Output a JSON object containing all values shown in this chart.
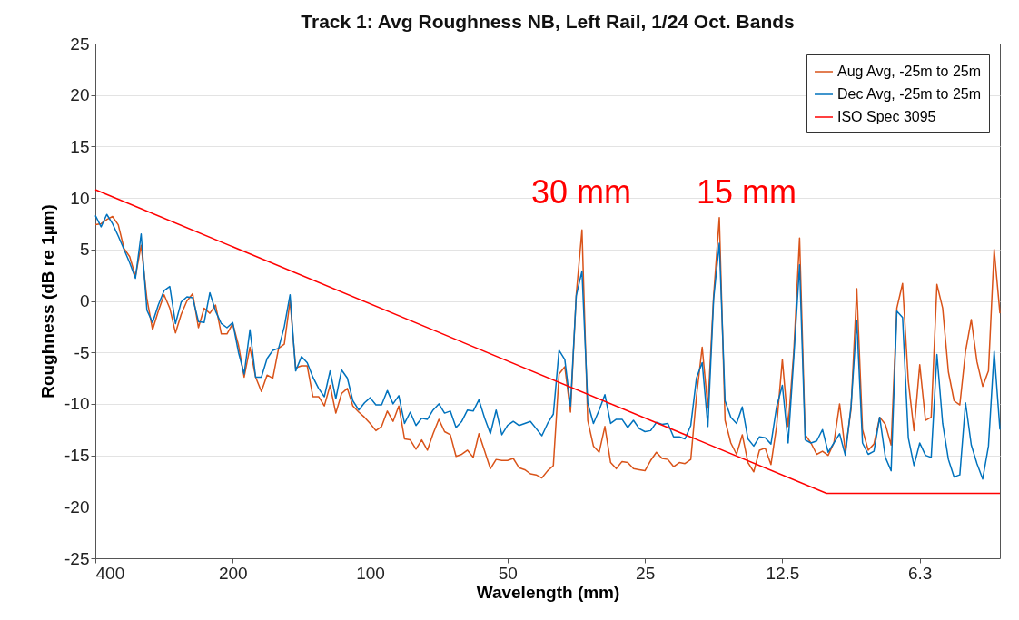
{
  "chart_data": {
    "type": "line",
    "title": "Track 1: Avg Roughness NB, Left Rail, 1/24 Oct. Bands",
    "xlabel": "Wavelength (mm)",
    "ylabel": "Roughness (dB re 1µm)",
    "x": [
      400,
      388.6,
      377.6,
      366.8,
      356.4,
      346.2,
      336.4,
      326.8,
      317.5,
      308.4,
      299.7,
      291.2,
      282.8,
      274.8,
      267.0,
      259.4,
      252.0,
      244.8,
      237.8,
      231.1,
      224.5,
      218.1,
      211.9,
      205.9,
      200,
      194.3,
      188.8,
      183.4,
      178.2,
      173.1,
      168.2,
      163.4,
      158.7,
      154.2,
      149.8,
      145.6,
      141.4,
      137.4,
      133.5,
      129.7,
      126.0,
      122.4,
      118.9,
      115.5,
      112.2,
      109.1,
      105.9,
      102.9,
      100,
      97.15,
      94.39,
      91.7,
      89.09,
      86.55,
      84.09,
      81.7,
      79.37,
      77.11,
      74.92,
      72.79,
      70.71,
      68.7,
      66.74,
      64.84,
      63.0,
      61.2,
      59.46,
      57.77,
      56.12,
      54.53,
      52.97,
      51.47,
      50,
      48.58,
      47.2,
      45.85,
      44.55,
      43.28,
      42.05,
      40.85,
      39.69,
      38.56,
      37.46,
      36.4,
      35.36,
      34.35,
      33.37,
      32.42,
      31.5,
      30.6,
      29.73,
      28.89,
      28.06,
      27.27,
      26.49,
      25.74,
      25,
      24.29,
      23.6,
      22.93,
      22.27,
      21.64,
      21.02,
      20.43,
      19.84,
      19.28,
      18.73,
      18.2,
      17.68,
      17.18,
      16.69,
      16.21,
      15.75,
      15.3,
      14.87,
      14.44,
      14.03,
      13.63,
      13.24,
      12.87,
      12.5,
      12.14,
      11.8,
      11.46,
      11.14,
      10.82,
      10.51,
      10.21,
      9.921,
      9.639,
      9.365,
      9.099,
      8.839,
      8.588,
      8.343,
      8.105,
      7.875,
      7.65,
      7.433,
      7.221,
      7.015,
      6.816,
      6.621,
      6.434,
      6.25,
      6.072,
      5.899,
      5.731,
      5.568,
      5.409,
      5.256,
      5.106,
      4.961,
      4.819,
      4.683,
      4.549,
      4.419,
      4.294,
      4.171
    ],
    "series": [
      {
        "name": "Aug Avg, -25m to 25m",
        "color": "#d95319",
        "values": [
          7.4,
          7.5,
          7.9,
          8.2,
          7.4,
          5.1,
          4.3,
          2.4,
          5.4,
          0.2,
          -2.8,
          -1.0,
          0.6,
          -0.7,
          -3.1,
          -1.3,
          0.0,
          0.7,
          -2.6,
          -0.7,
          -1.2,
          -0.4,
          -3.2,
          -3.2,
          -2.2,
          -4.3,
          -7.4,
          -4.5,
          -7.4,
          -8.8,
          -7.2,
          -7.5,
          -4.6,
          -4.2,
          0.0,
          -6.5,
          -6.3,
          -6.3,
          -9.3,
          -9.3,
          -10.2,
          -8.2,
          -10.9,
          -9.0,
          -8.5,
          -10.2,
          -10.8,
          -11.3,
          -11.9,
          -12.6,
          -12.2,
          -10.7,
          -11.7,
          -10.2,
          -13.4,
          -13.5,
          -14.4,
          -13.5,
          -14.5,
          -12.9,
          -11.5,
          -12.7,
          -13.0,
          -15.1,
          -14.9,
          -14.5,
          -15.2,
          -12.9,
          -14.6,
          -16.3,
          -15.4,
          -15.5,
          -15.5,
          -15.3,
          -16.2,
          -16.4,
          -16.8,
          -16.9,
          -17.2,
          -16.5,
          -16.0,
          -7.1,
          -6.4,
          -10.8,
          0.6,
          6.9,
          -11.6,
          -14.1,
          -14.7,
          -12.2,
          -15.7,
          -16.3,
          -15.6,
          -15.7,
          -16.3,
          -16.4,
          -16.5,
          -15.5,
          -14.7,
          -15.3,
          -15.4,
          -16.1,
          -15.7,
          -15.8,
          -15.4,
          -9.3,
          -4.5,
          -10.4,
          0.5,
          8.1,
          -11.6,
          -13.8,
          -14.9,
          -13.0,
          -15.7,
          -16.6,
          -14.5,
          -14.3,
          -15.9,
          -12.2,
          -5.7,
          -12.2,
          -4.9,
          6.1,
          -13.0,
          -13.8,
          -14.9,
          -14.6,
          -15.0,
          -13.8,
          -10.0,
          -14.6,
          -10.5,
          1.2,
          -12.5,
          -14.5,
          -13.9,
          -11.3,
          -12.0,
          -14.0,
          -0.7,
          1.7,
          -7.8,
          -12.6,
          -6.2,
          -11.6,
          -11.3,
          1.6,
          -0.7,
          -6.9,
          -9.7,
          -10.1,
          -4.9,
          -1.8,
          -5.9,
          -8.3,
          -6.8,
          5.0,
          -1.2
        ]
      },
      {
        "name": "Dec Avg, -25m to 25m",
        "color": "#0072bd",
        "values": [
          8.3,
          7.2,
          8.4,
          7.5,
          6.3,
          5.0,
          3.7,
          2.2,
          6.5,
          -0.9,
          -2.1,
          -0.4,
          1.0,
          1.4,
          -2.2,
          -0.1,
          0.4,
          0.3,
          -2.0,
          -2.1,
          0.8,
          -1.0,
          -2.2,
          -2.6,
          -2.1,
          -5.0,
          -7.1,
          -2.8,
          -7.4,
          -7.4,
          -5.6,
          -4.8,
          -4.6,
          -2.5,
          0.6,
          -6.8,
          -5.4,
          -6.0,
          -7.4,
          -8.5,
          -9.3,
          -6.8,
          -9.5,
          -6.7,
          -7.5,
          -9.7,
          -10.6,
          -9.9,
          -9.4,
          -10.1,
          -10.1,
          -8.7,
          -10.0,
          -9.2,
          -11.9,
          -10.8,
          -12.1,
          -11.4,
          -11.5,
          -10.6,
          -10.0,
          -10.9,
          -10.7,
          -12.3,
          -11.7,
          -10.6,
          -10.7,
          -9.6,
          -11.4,
          -12.9,
          -10.6,
          -13.0,
          -12.1,
          -11.7,
          -12.1,
          -11.9,
          -11.7,
          -12.4,
          -13.1,
          -11.9,
          -11.0,
          -4.8,
          -5.7,
          -10.2,
          0.5,
          2.9,
          -9.9,
          -11.9,
          -10.6,
          -9.1,
          -11.9,
          -11.5,
          -11.5,
          -12.3,
          -11.6,
          -12.4,
          -12.7,
          -12.6,
          -11.8,
          -12.0,
          -11.9,
          -13.2,
          -13.2,
          -13.4,
          -12.1,
          -7.5,
          -6.0,
          -12.2,
          0.2,
          5.6,
          -9.7,
          -11.3,
          -11.9,
          -10.3,
          -13.4,
          -14.1,
          -13.2,
          -13.3,
          -13.9,
          -10.3,
          -8.2,
          -13.8,
          -5.5,
          3.5,
          -13.5,
          -13.8,
          -13.6,
          -12.5,
          -14.7,
          -13.8,
          -12.9,
          -15.0,
          -10.2,
          -1.9,
          -13.8,
          -14.9,
          -14.6,
          -11.3,
          -15.2,
          -16.5,
          -1.0,
          -1.6,
          -13.3,
          -16.0,
          -13.8,
          -15.0,
          -15.2,
          -5.2,
          -11.9,
          -15.4,
          -17.1,
          -16.9,
          -9.9,
          -14.0,
          -15.8,
          -17.3,
          -14.1,
          -4.9,
          -12.5
        ]
      },
      {
        "name": "ISO Spec 3095",
        "color": "#ff0000",
        "x": [
          400,
          10.0,
          4.171
        ],
        "values": [
          10.8,
          -18.7,
          -18.7
        ]
      }
    ],
    "xlim": [
      400,
      4.171
    ],
    "xticks": [
      400,
      200,
      100,
      50,
      25,
      12.5,
      {
        "value": 6.25,
        "label": "6.3"
      }
    ],
    "ylim": [
      -25,
      25
    ],
    "yticks": [
      -25,
      -20,
      -15,
      -10,
      -5,
      0,
      5,
      10,
      15,
      20,
      25
    ],
    "log": "x",
    "grid": "y",
    "legend": "top right",
    "annotations": [
      "30 mm",
      "15 mm"
    ]
  }
}
